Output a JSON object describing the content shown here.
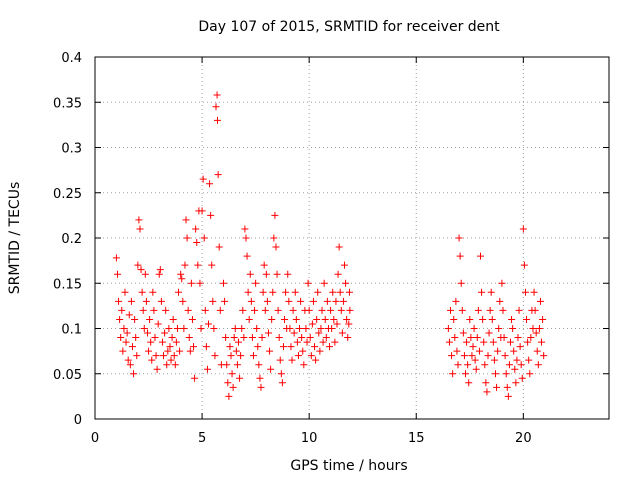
{
  "chart_data": {
    "type": "scatter",
    "title": "Day 107 of 2015, SRMTID for receiver dent",
    "xlabel": "GPS time / hours",
    "ylabel": "SRMTID / TECUs",
    "xlim": [
      0,
      24
    ],
    "ylim": [
      0,
      0.4
    ],
    "xticks": [
      0,
      5,
      10,
      15,
      20
    ],
    "xtick_labels": [
      "0",
      "5",
      "10",
      "15",
      "20"
    ],
    "yticks": [
      0,
      0.05,
      0.1,
      0.15,
      0.2,
      0.25,
      0.3,
      0.35,
      0.4
    ],
    "ytick_labels": [
      "0",
      "0.05",
      "0.1",
      "0.15",
      "0.2",
      "0.25",
      "0.3",
      "0.35",
      "0.4"
    ],
    "grid": true,
    "marker": "plus",
    "color": "#ff0000",
    "series": [
      {
        "name": "SRMTID",
        "points": [
          [
            1.0,
            0.178
          ],
          [
            1.05,
            0.16
          ],
          [
            1.1,
            0.13
          ],
          [
            1.15,
            0.11
          ],
          [
            1.2,
            0.09
          ],
          [
            1.25,
            0.12
          ],
          [
            1.3,
            0.075
          ],
          [
            1.35,
            0.1
          ],
          [
            1.4,
            0.14
          ],
          [
            1.45,
            0.085
          ],
          [
            1.5,
            0.095
          ],
          [
            1.55,
            0.065
          ],
          [
            1.6,
            0.115
          ],
          [
            1.65,
            0.06
          ],
          [
            1.7,
            0.13
          ],
          [
            1.75,
            0.08
          ],
          [
            1.8,
            0.05
          ],
          [
            1.85,
            0.11
          ],
          [
            1.9,
            0.09
          ],
          [
            1.95,
            0.07
          ],
          [
            2.0,
            0.17
          ],
          [
            2.05,
            0.22
          ],
          [
            2.1,
            0.21
          ],
          [
            2.15,
            0.165
          ],
          [
            2.2,
            0.14
          ],
          [
            2.25,
            0.12
          ],
          [
            2.3,
            0.1
          ],
          [
            2.35,
            0.16
          ],
          [
            2.4,
            0.13
          ],
          [
            2.45,
            0.095
          ],
          [
            2.5,
            0.075
          ],
          [
            2.55,
            0.11
          ],
          [
            2.6,
            0.085
          ],
          [
            2.65,
            0.065
          ],
          [
            2.7,
            0.14
          ],
          [
            2.75,
            0.12
          ],
          [
            2.8,
            0.09
          ],
          [
            2.85,
            0.07
          ],
          [
            2.9,
            0.055
          ],
          [
            2.95,
            0.105
          ],
          [
            3.0,
            0.16
          ],
          [
            3.05,
            0.165
          ],
          [
            3.1,
            0.13
          ],
          [
            3.15,
            0.085
          ],
          [
            3.2,
            0.07
          ],
          [
            3.25,
            0.095
          ],
          [
            3.3,
            0.12
          ],
          [
            3.35,
            0.06
          ],
          [
            3.4,
            0.075
          ],
          [
            3.45,
            0.1
          ],
          [
            3.5,
            0.08
          ],
          [
            3.55,
            0.065
          ],
          [
            3.6,
            0.09
          ],
          [
            3.65,
            0.11
          ],
          [
            3.7,
            0.07
          ],
          [
            3.75,
            0.06
          ],
          [
            3.8,
            0.085
          ],
          [
            3.85,
            0.1
          ],
          [
            3.9,
            0.14
          ],
          [
            3.95,
            0.075
          ],
          [
            4.0,
            0.16
          ],
          [
            4.05,
            0.155
          ],
          [
            4.1,
            0.13
          ],
          [
            4.15,
            0.1
          ],
          [
            4.2,
            0.17
          ],
          [
            4.25,
            0.22
          ],
          [
            4.3,
            0.2
          ],
          [
            4.35,
            0.12
          ],
          [
            4.4,
            0.09
          ],
          [
            4.45,
            0.075
          ],
          [
            4.5,
            0.15
          ],
          [
            4.55,
            0.11
          ],
          [
            4.6,
            0.08
          ],
          [
            4.65,
            0.045
          ],
          [
            4.7,
            0.21
          ],
          [
            4.75,
            0.195
          ],
          [
            4.8,
            0.17
          ],
          [
            4.85,
            0.23
          ],
          [
            4.9,
            0.15
          ],
          [
            4.95,
            0.1
          ],
          [
            5.0,
            0.23
          ],
          [
            5.05,
            0.265
          ],
          [
            5.1,
            0.2
          ],
          [
            5.15,
            0.12
          ],
          [
            5.2,
            0.08
          ],
          [
            5.25,
            0.055
          ],
          [
            5.3,
            0.105
          ],
          [
            5.35,
            0.26
          ],
          [
            5.4,
            0.225
          ],
          [
            5.45,
            0.17
          ],
          [
            5.5,
            0.13
          ],
          [
            5.55,
            0.1
          ],
          [
            5.6,
            0.07
          ],
          [
            5.65,
            0.345
          ],
          [
            5.7,
            0.358
          ],
          [
            5.72,
            0.33
          ],
          [
            5.75,
            0.27
          ],
          [
            5.8,
            0.19
          ],
          [
            5.85,
            0.12
          ],
          [
            5.9,
            0.06
          ],
          [
            6.0,
            0.15
          ],
          [
            6.05,
            0.13
          ],
          [
            6.1,
            0.09
          ],
          [
            6.15,
            0.06
          ],
          [
            6.2,
            0.04
          ],
          [
            6.25,
            0.025
          ],
          [
            6.3,
            0.08
          ],
          [
            6.35,
            0.07
          ],
          [
            6.4,
            0.05
          ],
          [
            6.45,
            0.035
          ],
          [
            6.5,
            0.09
          ],
          [
            6.55,
            0.1
          ],
          [
            6.6,
            0.075
          ],
          [
            6.65,
            0.06
          ],
          [
            6.7,
            0.085
          ],
          [
            6.75,
            0.045
          ],
          [
            6.8,
            0.07
          ],
          [
            6.85,
            0.1
          ],
          [
            6.9,
            0.12
          ],
          [
            6.95,
            0.09
          ],
          [
            7.0,
            0.21
          ],
          [
            7.05,
            0.2
          ],
          [
            7.1,
            0.18
          ],
          [
            7.15,
            0.14
          ],
          [
            7.2,
            0.11
          ],
          [
            7.25,
            0.16
          ],
          [
            7.3,
            0.13
          ],
          [
            7.35,
            0.09
          ],
          [
            7.4,
            0.07
          ],
          [
            7.45,
            0.12
          ],
          [
            7.5,
            0.15
          ],
          [
            7.55,
            0.1
          ],
          [
            7.6,
            0.08
          ],
          [
            7.65,
            0.06
          ],
          [
            7.7,
            0.045
          ],
          [
            7.75,
            0.035
          ],
          [
            7.8,
            0.09
          ],
          [
            7.85,
            0.14
          ],
          [
            7.9,
            0.17
          ],
          [
            7.95,
            0.12
          ],
          [
            8.0,
            0.16
          ],
          [
            8.05,
            0.13
          ],
          [
            8.1,
            0.095
          ],
          [
            8.15,
            0.075
          ],
          [
            8.2,
            0.055
          ],
          [
            8.25,
            0.11
          ],
          [
            8.3,
            0.14
          ],
          [
            8.35,
            0.2
          ],
          [
            8.4,
            0.225
          ],
          [
            8.45,
            0.19
          ],
          [
            8.5,
            0.16
          ],
          [
            8.55,
            0.12
          ],
          [
            8.6,
            0.09
          ],
          [
            8.65,
            0.065
          ],
          [
            8.7,
            0.05
          ],
          [
            8.75,
            0.04
          ],
          [
            8.8,
            0.08
          ],
          [
            8.85,
            0.11
          ],
          [
            8.9,
            0.14
          ],
          [
            8.95,
            0.1
          ],
          [
            9.0,
            0.16
          ],
          [
            9.05,
            0.13
          ],
          [
            9.1,
            0.1
          ],
          [
            9.15,
            0.08
          ],
          [
            9.2,
            0.065
          ],
          [
            9.25,
            0.12
          ],
          [
            9.3,
            0.095
          ],
          [
            9.35,
            0.14
          ],
          [
            9.4,
            0.11
          ],
          [
            9.45,
            0.085
          ],
          [
            9.5,
            0.07
          ],
          [
            9.55,
            0.1
          ],
          [
            9.6,
            0.13
          ],
          [
            9.65,
            0.09
          ],
          [
            9.7,
            0.075
          ],
          [
            9.75,
            0.06
          ],
          [
            9.8,
            0.12
          ],
          [
            9.85,
            0.1
          ],
          [
            9.9,
            0.085
          ],
          [
            9.95,
            0.15
          ],
          [
            10.0,
            0.12
          ],
          [
            10.05,
            0.09
          ],
          [
            10.1,
            0.07
          ],
          [
            10.15,
            0.105
          ],
          [
            10.2,
            0.13
          ],
          [
            10.25,
            0.08
          ],
          [
            10.3,
            0.065
          ],
          [
            10.35,
            0.11
          ],
          [
            10.4,
            0.14
          ],
          [
            10.45,
            0.095
          ],
          [
            10.5,
            0.075
          ],
          [
            10.55,
            0.1
          ],
          [
            10.6,
            0.12
          ],
          [
            10.65,
            0.085
          ],
          [
            10.7,
            0.15
          ],
          [
            10.75,
            0.11
          ],
          [
            10.8,
            0.09
          ],
          [
            10.85,
            0.13
          ],
          [
            10.9,
            0.1
          ],
          [
            10.95,
            0.08
          ],
          [
            11.0,
            0.12
          ],
          [
            11.05,
            0.1
          ],
          [
            11.1,
            0.14
          ],
          [
            11.15,
            0.11
          ],
          [
            11.2,
            0.085
          ],
          [
            11.25,
            0.13
          ],
          [
            11.3,
            0.105
          ],
          [
            11.35,
            0.16
          ],
          [
            11.4,
            0.19
          ],
          [
            11.45,
            0.14
          ],
          [
            11.5,
            0.12
          ],
          [
            11.55,
            0.095
          ],
          [
            11.6,
            0.13
          ],
          [
            11.65,
            0.17
          ],
          [
            11.7,
            0.15
          ],
          [
            11.75,
            0.11
          ],
          [
            11.8,
            0.09
          ],
          [
            11.85,
            0.105
          ],
          [
            11.88,
            0.14
          ],
          [
            11.9,
            0.12
          ],
          [
            16.5,
            0.1
          ],
          [
            16.55,
            0.085
          ],
          [
            16.6,
            0.12
          ],
          [
            16.65,
            0.07
          ],
          [
            16.7,
            0.05
          ],
          [
            16.75,
            0.11
          ],
          [
            16.8,
            0.09
          ],
          [
            16.85,
            0.13
          ],
          [
            16.9,
            0.075
          ],
          [
            16.95,
            0.06
          ],
          [
            17.0,
            0.2
          ],
          [
            17.05,
            0.18
          ],
          [
            17.1,
            0.15
          ],
          [
            17.15,
            0.12
          ],
          [
            17.2,
            0.095
          ],
          [
            17.25,
            0.07
          ],
          [
            17.3,
            0.05
          ],
          [
            17.35,
            0.085
          ],
          [
            17.4,
            0.06
          ],
          [
            17.45,
            0.04
          ],
          [
            17.5,
            0.11
          ],
          [
            17.55,
            0.09
          ],
          [
            17.6,
            0.07
          ],
          [
            17.65,
            0.08
          ],
          [
            17.7,
            0.1
          ],
          [
            17.75,
            0.065
          ],
          [
            17.8,
            0.055
          ],
          [
            17.85,
            0.09
          ],
          [
            17.9,
            0.12
          ],
          [
            17.95,
            0.075
          ],
          [
            18.0,
            0.18
          ],
          [
            18.05,
            0.14
          ],
          [
            18.1,
            0.11
          ],
          [
            18.15,
            0.085
          ],
          [
            18.2,
            0.06
          ],
          [
            18.25,
            0.04
          ],
          [
            18.3,
            0.03
          ],
          [
            18.35,
            0.07
          ],
          [
            18.4,
            0.095
          ],
          [
            18.45,
            0.12
          ],
          [
            18.5,
            0.14
          ],
          [
            18.55,
            0.11
          ],
          [
            18.6,
            0.085
          ],
          [
            18.65,
            0.065
          ],
          [
            18.7,
            0.05
          ],
          [
            18.75,
            0.035
          ],
          [
            18.8,
            0.075
          ],
          [
            18.85,
            0.1
          ],
          [
            18.9,
            0.13
          ],
          [
            18.95,
            0.09
          ],
          [
            19.0,
            0.15
          ],
          [
            19.05,
            0.12
          ],
          [
            19.1,
            0.09
          ],
          [
            19.15,
            0.07
          ],
          [
            19.2,
            0.05
          ],
          [
            19.25,
            0.035
          ],
          [
            19.3,
            0.025
          ],
          [
            19.35,
            0.06
          ],
          [
            19.4,
            0.085
          ],
          [
            19.45,
            0.11
          ],
          [
            19.5,
            0.1
          ],
          [
            19.55,
            0.075
          ],
          [
            19.6,
            0.055
          ],
          [
            19.65,
            0.04
          ],
          [
            19.7,
            0.065
          ],
          [
            19.75,
            0.09
          ],
          [
            19.8,
            0.12
          ],
          [
            19.85,
            0.08
          ],
          [
            19.9,
            0.06
          ],
          [
            19.95,
            0.045
          ],
          [
            20.0,
            0.21
          ],
          [
            20.05,
            0.17
          ],
          [
            20.1,
            0.14
          ],
          [
            20.15,
            0.11
          ],
          [
            20.2,
            0.085
          ],
          [
            20.25,
            0.065
          ],
          [
            20.3,
            0.05
          ],
          [
            20.35,
            0.09
          ],
          [
            20.4,
            0.12
          ],
          [
            20.45,
            0.1
          ],
          [
            20.5,
            0.14
          ],
          [
            20.55,
            0.12
          ],
          [
            20.6,
            0.095
          ],
          [
            20.65,
            0.075
          ],
          [
            20.7,
            0.06
          ],
          [
            20.75,
            0.1
          ],
          [
            20.8,
            0.13
          ],
          [
            20.85,
            0.085
          ],
          [
            20.9,
            0.11
          ],
          [
            20.95,
            0.07
          ]
        ]
      }
    ]
  }
}
